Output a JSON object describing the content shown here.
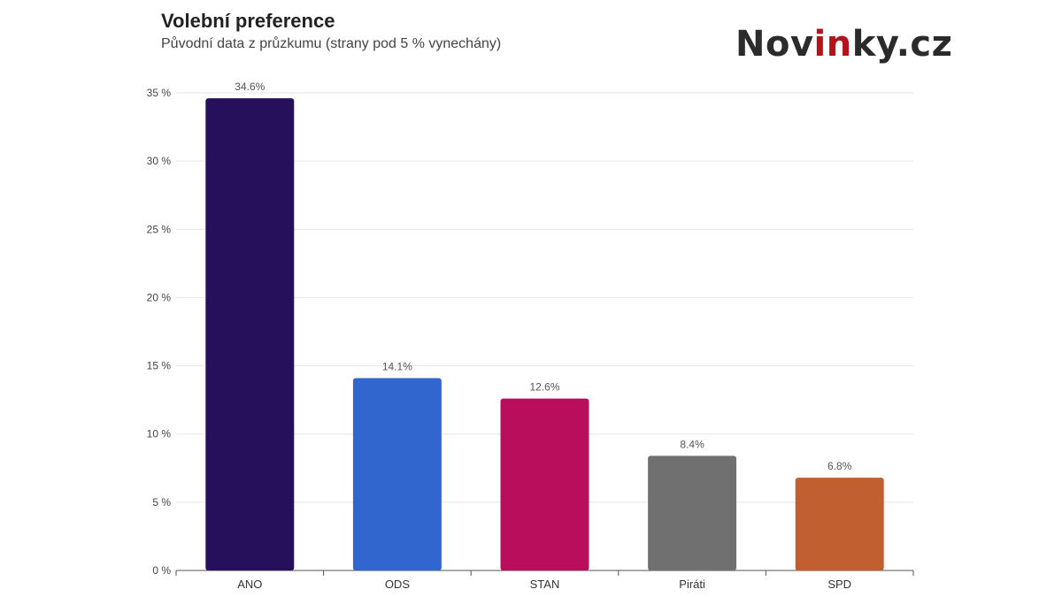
{
  "brand": {
    "prefix": "Nov",
    "highlight": "in",
    "suffix": "ky.cz",
    "highlight_color": "#b5121b"
  },
  "chart_data": {
    "type": "bar",
    "title": "Volební preference",
    "subtitle": "Původní data z průzkumu (strany pod 5 % vynechány)",
    "xlabel": "",
    "ylabel": "",
    "ylim": [
      0,
      35
    ],
    "yticks": [
      0,
      5,
      10,
      15,
      20,
      25,
      30,
      35
    ],
    "ytick_labels": [
      "0 %",
      "5 %",
      "10 %",
      "15 %",
      "20 %",
      "25 %",
      "30 %",
      "35 %"
    ],
    "grid": true,
    "categories": [
      "ANO",
      "ODS",
      "STAN",
      "Piráti",
      "SPD"
    ],
    "values": [
      34.6,
      14.1,
      12.6,
      8.4,
      6.8
    ],
    "value_labels": [
      "34.6%",
      "14.1%",
      "12.6%",
      "8.4%",
      "6.8%"
    ],
    "colors": [
      "#26105c",
      "#3166cf",
      "#b80e5c",
      "#707070",
      "#c15f31"
    ]
  }
}
